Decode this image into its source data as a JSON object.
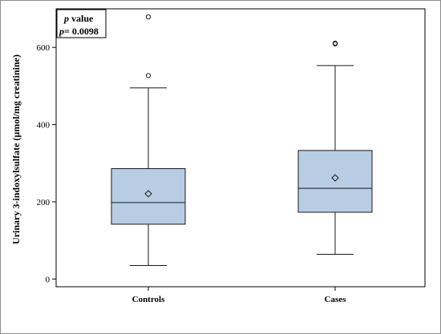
{
  "chart_data": {
    "type": "box",
    "title": "",
    "xlabel": "",
    "ylabel": "Urinary 3-indoxylsulfate (μmol/mg creatinine)",
    "ylim": [
      -20,
      700
    ],
    "yticks": [
      0,
      200,
      400,
      600
    ],
    "grid": false,
    "categories": [
      "Controls",
      "Cases"
    ],
    "boxes": [
      {
        "category": "Controls",
        "whisker_low": 35,
        "q1": 142,
        "median": 198,
        "q3": 286,
        "whisker_high": 495,
        "mean": 221,
        "outliers": [
          527,
          679
        ]
      },
      {
        "category": "Cases",
        "whisker_low": 64,
        "q1": 173,
        "median": 235,
        "q3": 333,
        "whisker_high": 553,
        "mean": 262,
        "outliers": [
          609,
          611
        ]
      }
    ],
    "box_color": "#b8cde4",
    "edge_color": "#1a1a1a",
    "annotation": {
      "p_label": "p",
      "label_rest": " value",
      "value_line": "p= 0.0098"
    }
  }
}
